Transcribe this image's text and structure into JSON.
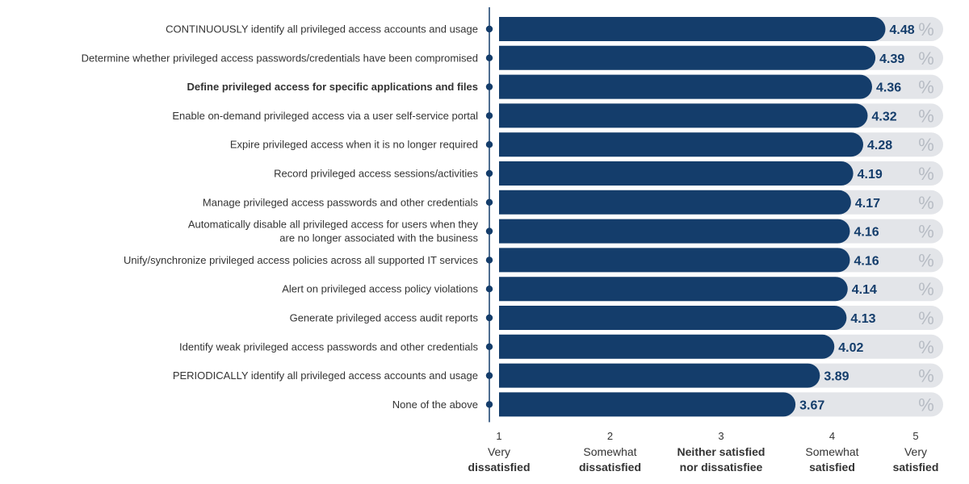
{
  "chart_data": {
    "type": "bar",
    "orientation": "horizontal",
    "xlim": [
      1,
      5
    ],
    "categories": [
      "CONTINUOUSLY identify all privileged access accounts and usage",
      "Determine whether privileged access passwords/credentials have been compromised",
      "Define privileged access for specific applications and files",
      "Enable on-demand privileged access via a user self-service portal",
      "Expire privileged access when it is no longer required",
      "Record privileged access sessions/activities",
      "Manage privileged access passwords and other credentials",
      "Automatically disable all privileged access for users when they are no longer associated with the business",
      "Unify/synchronize privileged access policies across all supported IT services",
      "Alert on privileged access policy violations",
      "Generate privileged access audit reports",
      "Identify weak privileged access passwords and other credentials",
      "PERIODICALLY identify all privileged access accounts and usage",
      "None of the above"
    ],
    "category_lines": [
      [
        "CONTINUOUSLY identify all privileged access accounts and usage"
      ],
      [
        "Determine whether privileged access passwords/credentials have been compromised"
      ],
      [
        "Define privileged access for specific applications and files"
      ],
      [
        "Enable on-demand privileged access via a user self-service portal"
      ],
      [
        "Expire privileged access when it is no longer required"
      ],
      [
        "Record privileged access sessions/activities"
      ],
      [
        "Manage privileged access passwords and other credentials"
      ],
      [
        "Automatically disable all privileged access for users when they",
        "are no longer associated with the business"
      ],
      [
        "Unify/synchronize privileged access policies across all supported IT services"
      ],
      [
        "Alert on privileged access policy violations"
      ],
      [
        "Generate privileged access audit reports"
      ],
      [
        "Identify weak privileged access passwords and other credentials"
      ],
      [
        "PERIODICALLY identify all privileged access accounts and usage"
      ],
      [
        "None of the above"
      ]
    ],
    "bold_categories": [
      2
    ],
    "values": [
      4.48,
      4.39,
      4.36,
      4.32,
      4.28,
      4.19,
      4.17,
      4.16,
      4.16,
      4.14,
      4.13,
      4.02,
      3.89,
      3.67
    ],
    "value_labels": [
      "4.48",
      "4.39",
      "4.36",
      "4.32",
      "4.28",
      "4.19",
      "4.17",
      "4.16",
      "4.16",
      "4.14",
      "4.13",
      "4.02",
      "3.89",
      "3.67"
    ],
    "percent_symbol": "%",
    "x_ticks": [
      {
        "value": 1,
        "number": "1",
        "lines": [
          "Very",
          "dissatisfied"
        ],
        "bold_line": 1
      },
      {
        "value": 2,
        "number": "2",
        "lines": [
          "Somewhat",
          "dissatisfied"
        ],
        "bold_line": 1
      },
      {
        "value": 3,
        "number": "3",
        "lines": [
          "Neither satisfied",
          "nor dissatisfiee"
        ],
        "bold_line": -1,
        "all_bold": true
      },
      {
        "value": 4,
        "number": "4",
        "lines": [
          "Somewhat",
          "satisfied"
        ],
        "bold_line": 1
      },
      {
        "value": 5,
        "number": "5",
        "lines": [
          "Very",
          "satisfied"
        ],
        "bold_line": 1
      }
    ],
    "grid": false,
    "legend": "none"
  },
  "colors": {
    "bar": "#143d6b",
    "track": "#e3e5e9",
    "axis": "#143d6b",
    "dot": "#143d6b",
    "value_text": "#143d6b",
    "percent_text": "#b7bcc4",
    "label_text": "#333333"
  }
}
